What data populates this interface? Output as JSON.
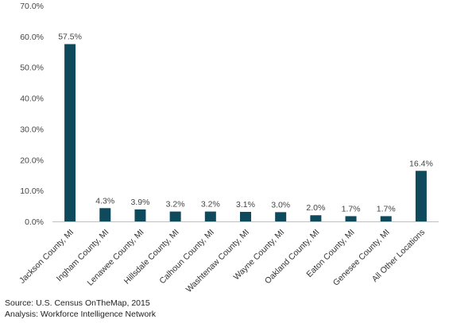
{
  "chart_data": {
    "type": "bar",
    "categories": [
      "Jackson County, MI",
      "Ingham County, MI",
      "Lenawee County, MI",
      "Hillsdale County, MI",
      "Calhoun County, MI",
      "Washtenaw County, MI",
      "Wayne County, MI",
      "Oakland County, MI",
      "Eaton County, MI",
      "Genesee County, MI",
      "All Other Locations"
    ],
    "values": [
      57.5,
      4.3,
      3.9,
      3.2,
      3.2,
      3.1,
      3.0,
      2.0,
      1.7,
      1.7,
      16.4
    ],
    "data_labels": [
      "57.5%",
      "4.3%",
      "3.9%",
      "3.2%",
      "3.2%",
      "3.1%",
      "3.0%",
      "2.0%",
      "1.7%",
      "1.7%",
      "16.4%"
    ],
    "ylim": [
      0,
      70
    ],
    "yticks": [
      0,
      10,
      20,
      30,
      40,
      50,
      60,
      70
    ],
    "ytick_labels": [
      "0.0%",
      "10.0%",
      "20.0%",
      "30.0%",
      "40.0%",
      "50.0%",
      "60.0%",
      "70.0%"
    ],
    "grid": false,
    "bar_color": "#0e4a5c",
    "title": "",
    "xlabel": "",
    "ylabel": ""
  },
  "footer": {
    "source": "Source: U.S. Census OnTheMap, 2015",
    "analysis": "Analysis: Workforce Intelligence Network"
  }
}
